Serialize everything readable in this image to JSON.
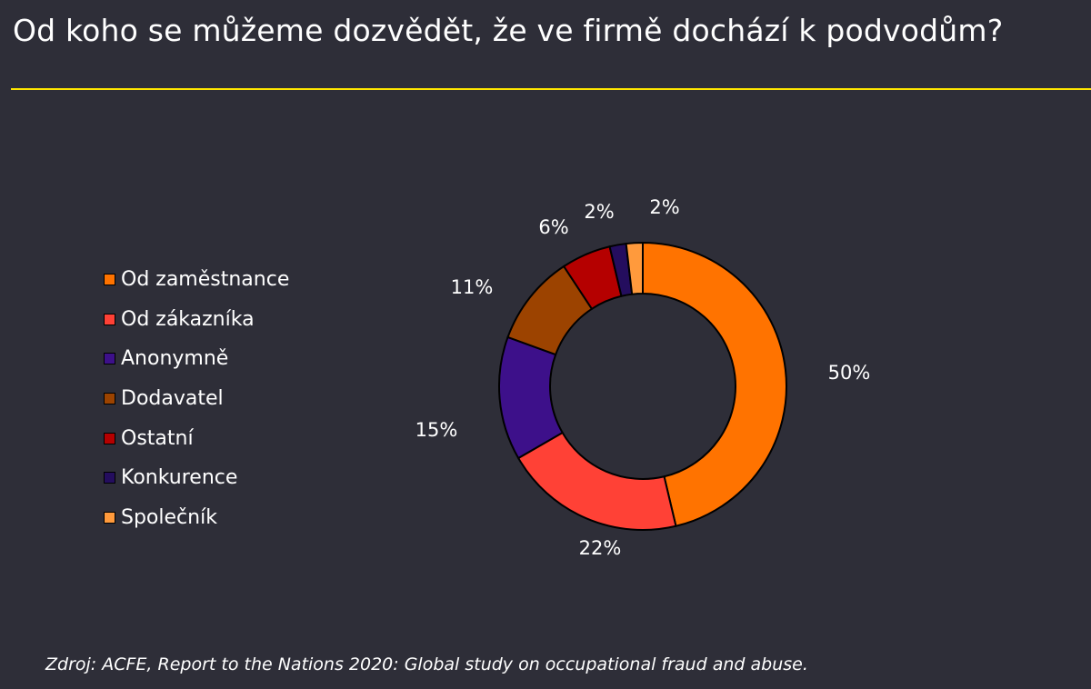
{
  "title": "Od koho se můžeme dozvědět, že ve firmě dochází k podvodům?",
  "source": "Zdroj: ACFE, Report to the Nations 2020: Global study on occupational fraud and abuse.",
  "colors": {
    "background": "#2e2e38",
    "accent_rule": "#ffe600"
  },
  "chart_data": {
    "type": "pie",
    "variant": "donut",
    "legend_position": "left",
    "slices": [
      {
        "label": "Od zaměstnance",
        "value": 50,
        "value_label": "50%",
        "color": "#ff7300"
      },
      {
        "label": "Od zákazníka",
        "value": 22,
        "value_label": "22%",
        "color": "#ff4136"
      },
      {
        "label": "Anonymně",
        "value": 15,
        "value_label": "15%",
        "color": "#3d108a"
      },
      {
        "label": "Dodavatel",
        "value": 11,
        "value_label": "11%",
        "color": "#9c4300"
      },
      {
        "label": "Ostatní",
        "value": 6,
        "value_label": "6%",
        "color": "#b50000"
      },
      {
        "label": "Konkurence",
        "value": 2,
        "value_label": "2%",
        "color": "#240d5e"
      },
      {
        "label": "Společník",
        "value": 2,
        "value_label": "2%",
        "color": "#ff9a3c"
      }
    ]
  }
}
